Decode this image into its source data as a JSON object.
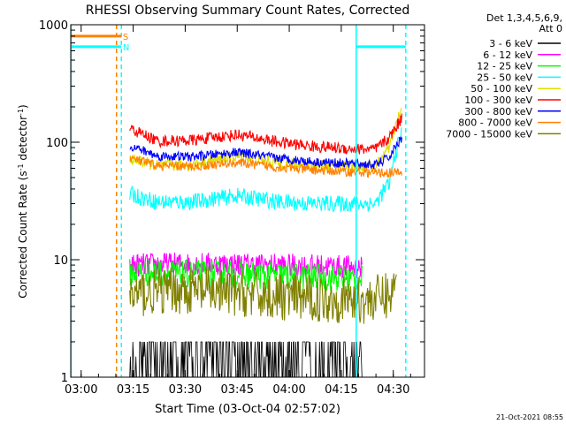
{
  "chart_data": {
    "type": "line",
    "title": "RHESSI Observing Summary Count Rates, Corrected",
    "xlabel": "Start Time (03-Oct-04 02:57:02)",
    "ylabel": "Corrected Count Rate (s⁻¹ detector⁻¹)",
    "ylabel_parts": {
      "pre": "Corrected Count Rate (s",
      "sup1": "-1",
      "mid": " detector",
      "sup2": "-1",
      "post": ")"
    },
    "footer": "21-Oct-2021 08:55",
    "y_scale": "log",
    "ylim": [
      1,
      1000
    ],
    "y_ticks": [
      {
        "value": 1,
        "label": "1"
      },
      {
        "value": 10,
        "label": "10"
      },
      {
        "value": 100,
        "label": "100"
      },
      {
        "value": 1000,
        "label": "1000"
      }
    ],
    "x_minutes_from_start_range": [
      0,
      102
    ],
    "x_ticks": [
      {
        "minutes": 3,
        "label": "03:00"
      },
      {
        "minutes": 18,
        "label": "03:15"
      },
      {
        "minutes": 33,
        "label": "03:30"
      },
      {
        "minutes": 48,
        "label": "03:45"
      },
      {
        "minutes": 63,
        "label": "04:00"
      },
      {
        "minutes": 78,
        "label": "04:15"
      },
      {
        "minutes": 93,
        "label": "04:30"
      }
    ],
    "legend": {
      "header": [
        "Det 1,3,4,5,6,9,",
        "Att 0"
      ],
      "placement": "right",
      "entries": [
        {
          "label": "3 - 6 keV",
          "color": "#000000"
        },
        {
          "label": "6 - 12 keV",
          "color": "#ff00ff"
        },
        {
          "label": "12 - 25 keV",
          "color": "#00ff00"
        },
        {
          "label": "25 - 50 keV",
          "color": "#00ffff"
        },
        {
          "label": "50 - 100 keV",
          "color": "#e0e000"
        },
        {
          "label": "100 - 300 keV",
          "color": "#ff0000"
        },
        {
          "label": "300 - 800 keV",
          "color": "#0000ff"
        },
        {
          "label": "800 - 7000 keV",
          "color": "#ff8000"
        },
        {
          "label": "7000 - 15000 keV",
          "color": "#808000"
        }
      ]
    },
    "markers": [
      {
        "label": "S",
        "color": "#ff8000",
        "x_start": 0,
        "x_end": 14.5,
        "value": 800
      },
      {
        "label": "N",
        "color": "#00ffff",
        "x_start": 0,
        "x_end": 14.5,
        "value": 650
      }
    ],
    "series": [
      {
        "name": "3 - 6 keV",
        "color": "#000000",
        "style": "noisy",
        "x": [
          17,
          35,
          50,
          65,
          80,
          84
        ],
        "y": [
          1.5,
          1.5,
          1.5,
          1.5,
          1.5,
          1.5
        ],
        "noise": 0.8
      },
      {
        "name": "6 - 12 keV",
        "color": "#ff00ff",
        "x": [
          17,
          30,
          45,
          60,
          75,
          84
        ],
        "y": [
          9,
          9.2,
          9.2,
          9,
          8.8,
          8.6
        ],
        "noise": 0.1
      },
      {
        "name": "12 - 25 keV",
        "color": "#00ff00",
        "x": [
          17,
          30,
          45,
          60,
          75,
          84
        ],
        "y": [
          7.8,
          7.6,
          7.5,
          7.3,
          7.0,
          6.8
        ],
        "noise": 0.12
      },
      {
        "name": "25 - 50 keV",
        "color": "#00ffff",
        "x": [
          17,
          25,
          35,
          48,
          60,
          70,
          80,
          88,
          92,
          95.5
        ],
        "y": [
          36,
          31,
          31,
          35,
          31,
          30,
          30,
          30,
          45,
          120
        ],
        "noise": 0.07
      },
      {
        "name": "50 - 100 keV",
        "color": "#e0e000",
        "x": [
          17,
          25,
          35,
          48,
          60,
          70,
          80,
          88,
          92,
          95.5
        ],
        "y": [
          72,
          63,
          64,
          76,
          66,
          63,
          62,
          62,
          90,
          190
        ],
        "noise": 0.05
      },
      {
        "name": "100 - 300 keV",
        "color": "#ff0000",
        "x": [
          17,
          25,
          35,
          48,
          60,
          70,
          80,
          88,
          92,
          95.5
        ],
        "y": [
          130,
          102,
          104,
          116,
          100,
          92,
          88,
          87,
          110,
          160
        ],
        "noise": 0.05
      },
      {
        "name": "300 - 800 keV",
        "color": "#0000ff",
        "x": [
          17,
          25,
          35,
          48,
          60,
          70,
          80,
          88,
          92,
          95.5
        ],
        "y": [
          93,
          76,
          75,
          82,
          73,
          68,
          66,
          64,
          75,
          110
        ],
        "noise": 0.04
      },
      {
        "name": "800 - 7000 keV",
        "color": "#ff8000",
        "x": [
          17,
          25,
          35,
          48,
          60,
          70,
          80,
          88,
          92,
          95.5
        ],
        "y": [
          73,
          63,
          62,
          67,
          61,
          58,
          56,
          55,
          55,
          55
        ],
        "noise": 0.04
      },
      {
        "name": "7000 - 15000 keV",
        "color": "#808000",
        "x": [
          17,
          30,
          45,
          60,
          75,
          85,
          92,
          94
        ],
        "y": [
          5,
          5.5,
          5.2,
          4.8,
          4.6,
          4.5,
          5,
          6
        ],
        "noise": 0.2
      }
    ],
    "vertical_lines": [
      {
        "x": 0.1,
        "color": "#00ffff",
        "style": "solid"
      },
      {
        "x": 13.2,
        "color": "#ff8000",
        "style": "dashed"
      },
      {
        "x": 14.6,
        "color": "#00ffff",
        "style": "dashed"
      },
      {
        "x": 82.3,
        "color": "#00ffff",
        "style": "solid"
      },
      {
        "x": 96.6,
        "color": "#00ffff",
        "style": "dashed"
      }
    ],
    "top_bar": {
      "color": "#00ffff",
      "x_start": 82.3,
      "x_end": 96.6,
      "value": 650
    }
  }
}
